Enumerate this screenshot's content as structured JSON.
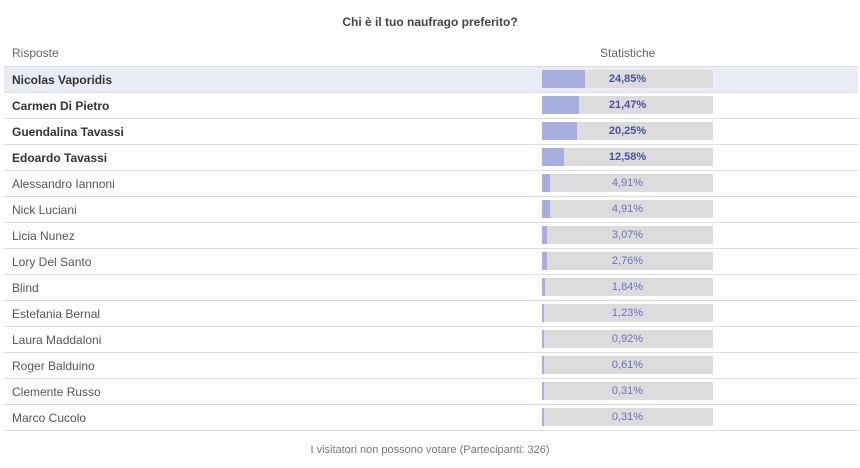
{
  "poll": {
    "title": "Chi è il tuo naufrago preferito?",
    "col_answers": "Risposte",
    "col_stats": "Statistiche",
    "footer": "I visitatori non possono votare (Partecipanti: 326)"
  },
  "colors": {
    "bar_fill": "#a9aee0",
    "bar_track": "#dcdcdc",
    "leader_row_bg": "#e9ebf5",
    "percent_text": "#4b50a8"
  },
  "chart_data": {
    "type": "bar",
    "orientation": "horizontal",
    "title": "Chi è il tuo naufrago preferito?",
    "xlim": [
      0,
      100
    ],
    "categories": [
      "Nicolas Vaporidis",
      "Carmen Di Pietro",
      "Guendalina Tavassi",
      "Edoardo Tavassi",
      "Alessandro Iannoni",
      "Nick Luciani",
      "Licia Nunez",
      "Lory Del Santo",
      "Blind",
      "Estefania Bernal",
      "Laura Maddaloni",
      "Roger Balduino",
      "Clemente Russo",
      "Marco Cucolo"
    ],
    "values": [
      24.85,
      21.47,
      20.25,
      12.58,
      4.91,
      4.91,
      3.07,
      2.76,
      1.84,
      1.23,
      0.92,
      0.61,
      0.31,
      0.31
    ],
    "labels": [
      "24,85%",
      "21,47%",
      "20,25%",
      "12,58%",
      "4,91%",
      "4,91%",
      "3,07%",
      "2,76%",
      "1,84%",
      "1,23%",
      "0,92%",
      "0,61%",
      "0,31%",
      "0,31%"
    ]
  }
}
